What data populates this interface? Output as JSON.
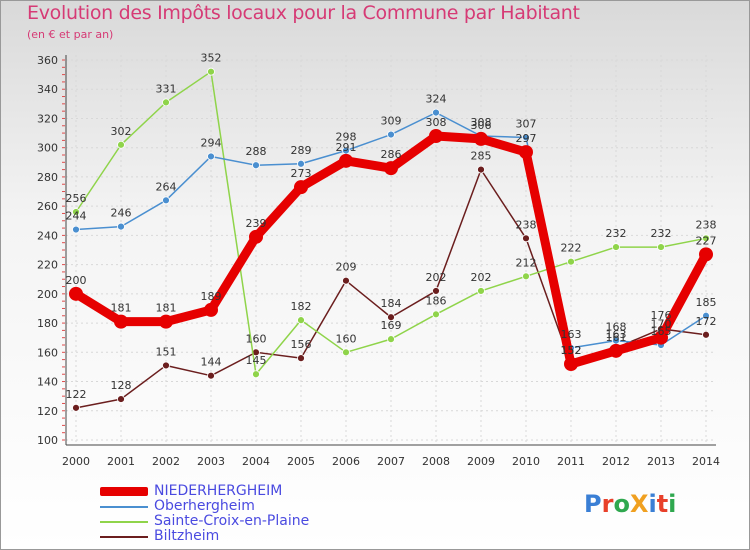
{
  "header": {
    "title": "Evolution des Impôts locaux pour la Commune par Habitant",
    "subtitle": "(en € et par an)"
  },
  "logo": {
    "text": "ProXiti",
    "colors": [
      "#3a7fd5",
      "#e8402a",
      "#2fa84f",
      "#f0a020",
      "#3a7fd5",
      "#e8402a",
      "#2fa84f"
    ]
  },
  "chart_data": {
    "type": "line",
    "x": [
      "2000",
      "2001",
      "2002",
      "2003",
      "2004",
      "2005",
      "2006",
      "2007",
      "2008",
      "2009",
      "2010",
      "2011",
      "2012",
      "2013",
      "2014"
    ],
    "yticks": [
      100,
      120,
      140,
      160,
      180,
      200,
      220,
      240,
      260,
      280,
      300,
      320,
      340,
      360
    ],
    "ylim": [
      100,
      360
    ],
    "series": [
      {
        "name": "NIEDERHERGHEIM",
        "color": "#e60000",
        "values": [
          200,
          181,
          181,
          189,
          239,
          273,
          291,
          286,
          308,
          306,
          297,
          152,
          161,
          170,
          227
        ],
        "labels": [
          "200",
          "181",
          "181",
          "189",
          "239",
          "273",
          "291",
          "286",
          "308",
          "306",
          "297",
          "152",
          "161",
          "170",
          "227"
        ]
      },
      {
        "name": "Oberhergheim",
        "color": "#4a8fd0",
        "values": [
          244,
          246,
          264,
          294,
          288,
          289,
          298,
          309,
          324,
          308,
          307,
          163,
          168,
          165,
          185
        ],
        "labels": [
          "244",
          "246",
          "264",
          "294",
          "288",
          "289",
          "298",
          "309",
          "324",
          "308",
          "307",
          "163",
          "168",
          "165",
          "185"
        ]
      },
      {
        "name": "Sainte-Croix-en-Plaine",
        "color": "#8fd44a",
        "values": [
          256,
          302,
          331,
          352,
          145,
          182,
          160,
          169,
          186,
          202,
          212,
          222,
          232,
          232,
          238
        ],
        "labels": [
          "256",
          "302",
          "331",
          "352",
          "145",
          "182",
          "160",
          "169",
          "186",
          "202",
          "212",
          "222",
          "232",
          "232",
          "238"
        ]
      },
      {
        "name": "Biltzheim",
        "color": "#6b1e1e",
        "values": [
          122,
          128,
          151,
          144,
          160,
          156,
          209,
          184,
          202,
          285,
          238,
          152,
          163,
          176,
          172
        ],
        "labels": [
          "122",
          "128",
          "151",
          "144",
          "160",
          "156",
          "209",
          "184",
          "202",
          "285",
          "238",
          "152",
          "163",
          "176",
          "172"
        ]
      }
    ]
  }
}
